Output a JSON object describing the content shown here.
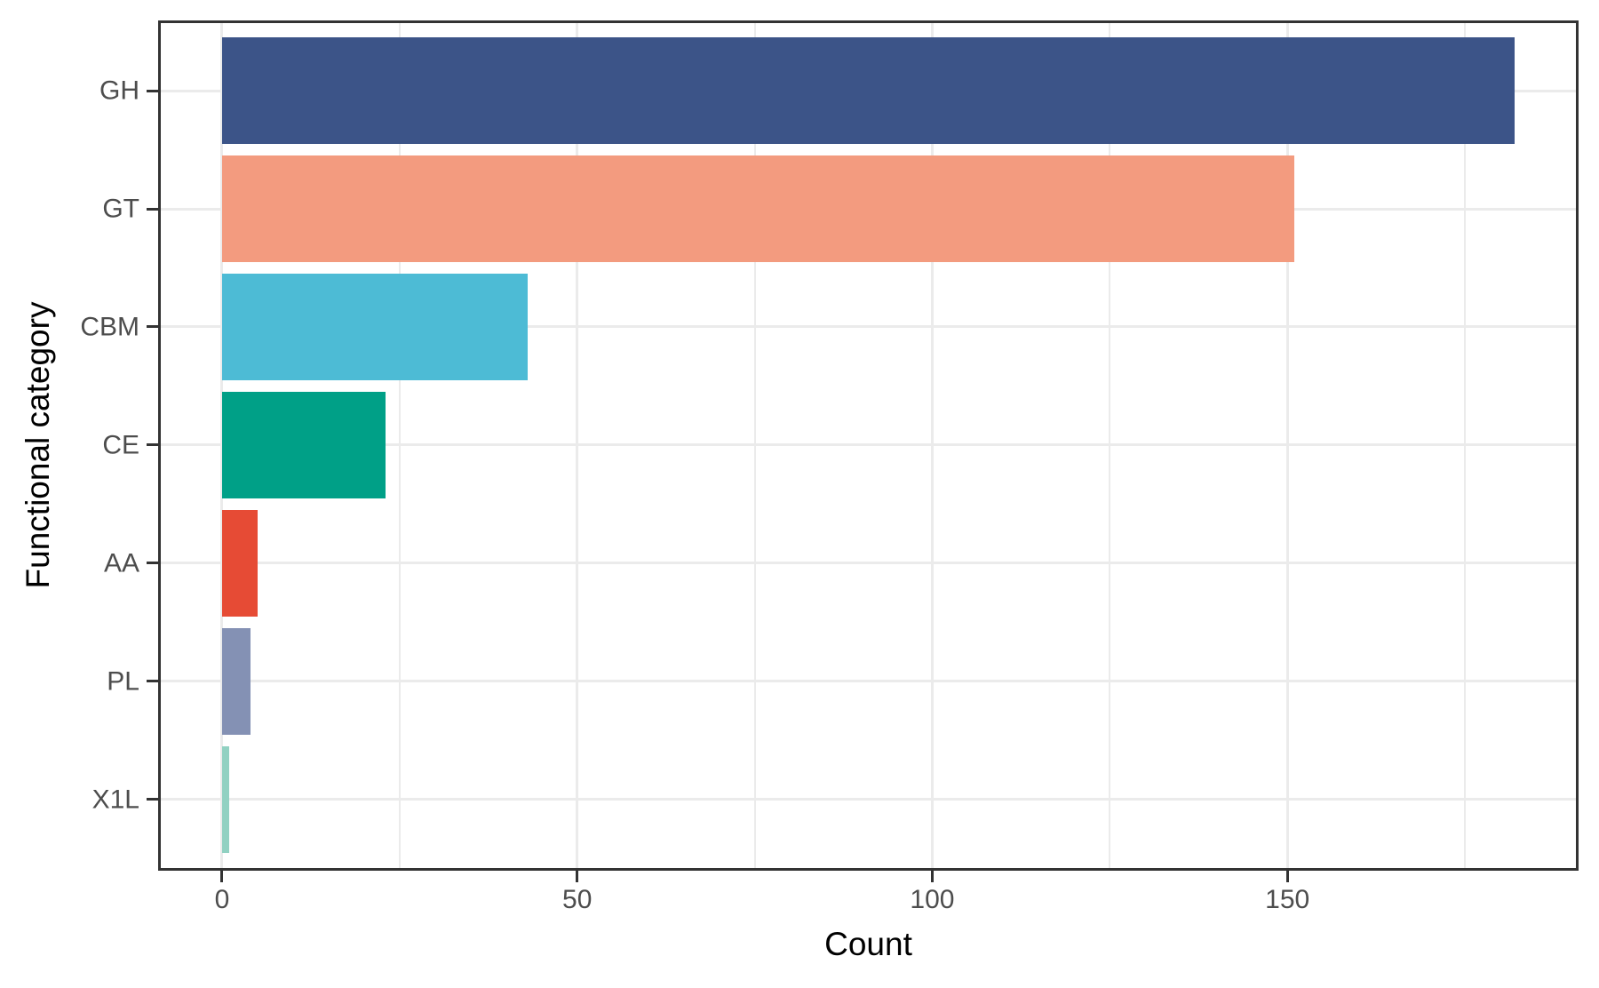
{
  "chart_data": {
    "type": "bar",
    "orientation": "horizontal",
    "title": "",
    "xlabel": "Count",
    "ylabel": "Functional category",
    "categories": [
      "GH",
      "GT",
      "CBM",
      "CE",
      "AA",
      "PL",
      "X1L"
    ],
    "values": [
      182,
      151,
      43,
      23,
      5,
      4,
      1
    ],
    "bar_colors": [
      "#3C5488",
      "#F39B7F",
      "#4DBBD5",
      "#00A087",
      "#E64B35",
      "#8491B4",
      "#91D1C2"
    ],
    "x_ticks": [
      0,
      50,
      100,
      150
    ],
    "x_minor_ticks": [
      25,
      75,
      125,
      175
    ],
    "xlim": [
      -9,
      191
    ],
    "bar_width_fraction": 0.9,
    "grid": true,
    "legend": false
  },
  "style": {
    "background": "#FFFFFF",
    "panel_border_color": "#333333",
    "grid_color": "#EBEBEB",
    "tick_color": "#333333",
    "tick_label_color": "#4D4D4D",
    "axis_title_color": "#000000"
  }
}
